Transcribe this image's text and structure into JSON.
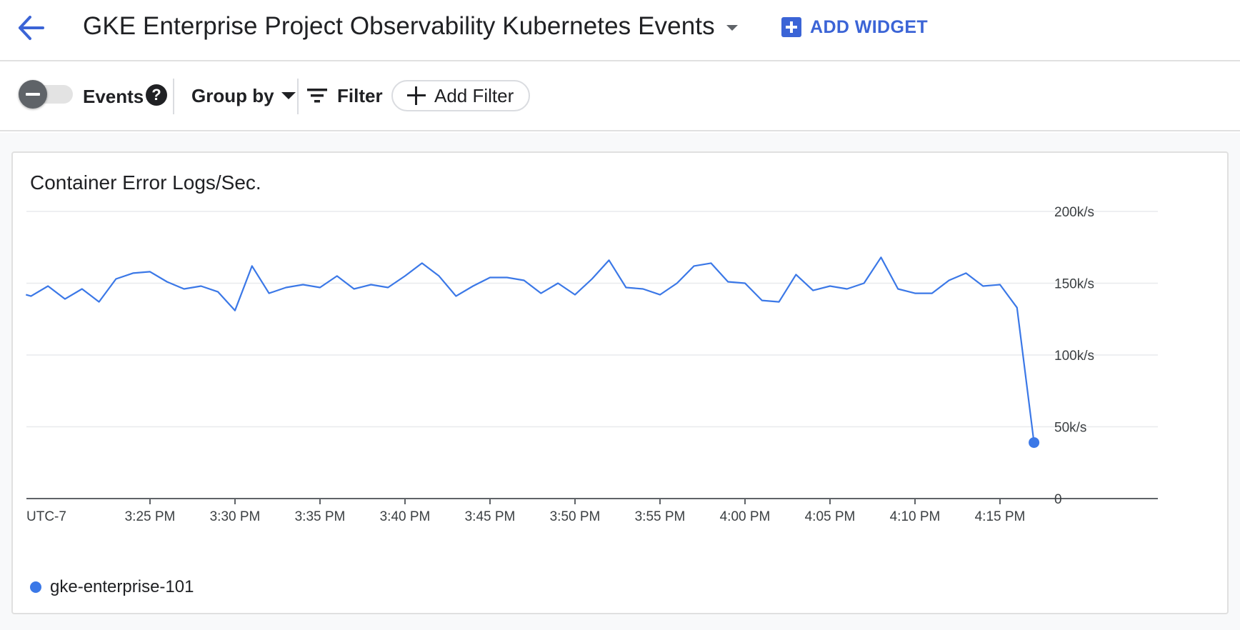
{
  "header": {
    "title": "GKE Enterprise Project Observability Kubernetes Events",
    "add_widget_label": "ADD WIDGET"
  },
  "toolbar": {
    "events_label": "Events",
    "help_symbol": "?",
    "group_by_label": "Group by",
    "filter_label": "Filter",
    "add_filter_label": "Add Filter"
  },
  "icons": {
    "back": "arrow-left",
    "title_dropdown": "caret-down",
    "add_widget": "plus-box",
    "events_toggle": "toggle-off",
    "help": "help-circle",
    "group_by_dropdown": "caret-down",
    "filter": "filter-lines",
    "add_filter": "plus"
  },
  "colors": {
    "accent": "#3b64d6",
    "series": "#3b78e7",
    "grid": "#e8eaed",
    "axis": "#5f6368"
  },
  "chart_data": {
    "type": "line",
    "title": "Container Error Logs/Sec.",
    "timezone_label": "UTC-7",
    "x_tick_labels": [
      "3:25 PM",
      "3:30 PM",
      "3:35 PM",
      "3:40 PM",
      "3:45 PM",
      "3:50 PM",
      "3:55 PM",
      "4:00 PM",
      "4:05 PM",
      "4:10 PM",
      "4:15 PM"
    ],
    "y_tick_labels": [
      "0",
      "50k/s",
      "100k/s",
      "150k/s",
      "200k/s"
    ],
    "y_tick_values": [
      0,
      50000,
      100000,
      150000,
      200000
    ],
    "ylim": [
      0,
      200000
    ],
    "x_unit": "minutes",
    "x_range_minutes": [
      "3:17.7 PM",
      "4:17.7 PM"
    ],
    "grid": true,
    "legend_position": "bottom-left",
    "series": [
      {
        "name": "gke-enterprise-101",
        "points": [
          [
            "3:17.7 PM",
            142000
          ],
          [
            "3:18 PM",
            141000
          ],
          [
            "3:19 PM",
            148000
          ],
          [
            "3:20 PM",
            139000
          ],
          [
            "3:21 PM",
            146000
          ],
          [
            "3:22 PM",
            137000
          ],
          [
            "3:23 PM",
            153000
          ],
          [
            "3:24 PM",
            157000
          ],
          [
            "3:25 PM",
            158000
          ],
          [
            "3:26 PM",
            151000
          ],
          [
            "3:27 PM",
            146000
          ],
          [
            "3:28 PM",
            148000
          ],
          [
            "3:29 PM",
            144000
          ],
          [
            "3:30 PM",
            131000
          ],
          [
            "3:31 PM",
            162000
          ],
          [
            "3:32 PM",
            143000
          ],
          [
            "3:33 PM",
            147000
          ],
          [
            "3:34 PM",
            149000
          ],
          [
            "3:35 PM",
            147000
          ],
          [
            "3:36 PM",
            155000
          ],
          [
            "3:37 PM",
            146000
          ],
          [
            "3:38 PM",
            149000
          ],
          [
            "3:39 PM",
            147000
          ],
          [
            "3:40 PM",
            155000
          ],
          [
            "3:41 PM",
            164000
          ],
          [
            "3:42 PM",
            155000
          ],
          [
            "3:43 PM",
            141000
          ],
          [
            "3:44 PM",
            148000
          ],
          [
            "3:45 PM",
            154000
          ],
          [
            "3:46 PM",
            154000
          ],
          [
            "3:47 PM",
            152000
          ],
          [
            "3:48 PM",
            143000
          ],
          [
            "3:49 PM",
            150000
          ],
          [
            "3:50 PM",
            142000
          ],
          [
            "3:51 PM",
            153000
          ],
          [
            "3:52 PM",
            166000
          ],
          [
            "3:53 PM",
            147000
          ],
          [
            "3:54 PM",
            146000
          ],
          [
            "3:55 PM",
            142000
          ],
          [
            "3:56 PM",
            150000
          ],
          [
            "3:57 PM",
            162000
          ],
          [
            "3:58 PM",
            164000
          ],
          [
            "3:59 PM",
            151000
          ],
          [
            "4:00 PM",
            150000
          ],
          [
            "4:01 PM",
            138000
          ],
          [
            "4:02 PM",
            137000
          ],
          [
            "4:03 PM",
            156000
          ],
          [
            "4:04 PM",
            145000
          ],
          [
            "4:05 PM",
            148000
          ],
          [
            "4:06 PM",
            146000
          ],
          [
            "4:07 PM",
            150000
          ],
          [
            "4:08 PM",
            168000
          ],
          [
            "4:09 PM",
            146000
          ],
          [
            "4:10 PM",
            143000
          ],
          [
            "4:11 PM",
            143000
          ],
          [
            "4:12 PM",
            152000
          ],
          [
            "4:13 PM",
            157000
          ],
          [
            "4:14 PM",
            148000
          ],
          [
            "4:15 PM",
            149000
          ],
          [
            "4:16 PM",
            133000
          ],
          [
            "4:17 PM",
            39000
          ]
        ]
      }
    ]
  }
}
